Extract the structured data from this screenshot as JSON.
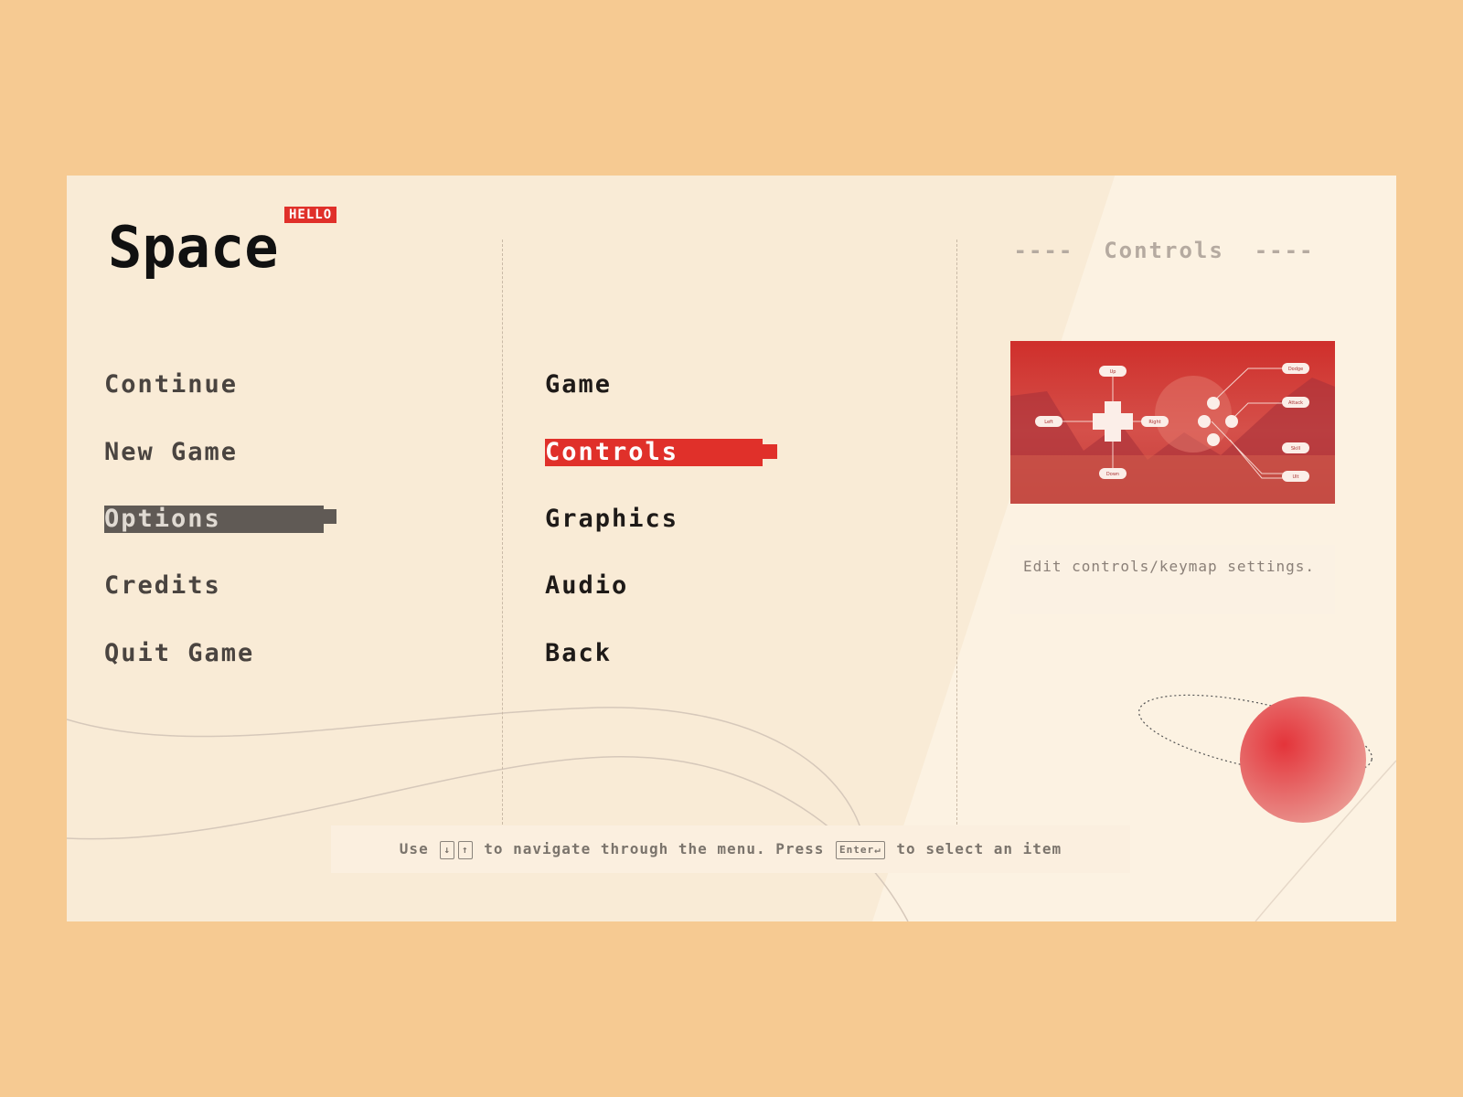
{
  "logo": {
    "title": "Space",
    "badge": "HELLO"
  },
  "main_menu": [
    {
      "label": "Continue"
    },
    {
      "label": "New Game"
    },
    {
      "label": "Options",
      "selected": true
    },
    {
      "label": "Credits"
    },
    {
      "label": "Quit Game"
    }
  ],
  "options_menu": [
    {
      "label": "Game"
    },
    {
      "label": "Controls",
      "selected": true
    },
    {
      "label": "Graphics"
    },
    {
      "label": "Audio"
    },
    {
      "label": "Back"
    }
  ],
  "detail": {
    "header": "----  Controls  ----",
    "description": "Edit controls/keymap settings.",
    "controller_labels": [
      "Up",
      "Down",
      "Left",
      "Right",
      "Dodge",
      "Attack",
      "Skill",
      "Ult"
    ]
  },
  "hint": {
    "use": "Use",
    "down_key": "↓",
    "up_key": "↑",
    "middle": "to navigate through the menu. Press",
    "enter_key": "Enter↵",
    "end": "to select an item"
  },
  "colors": {
    "background": "#f6ca92",
    "panel": "#f9ebd6",
    "accent": "#e0302a",
    "selected_gray": "#605a55"
  }
}
